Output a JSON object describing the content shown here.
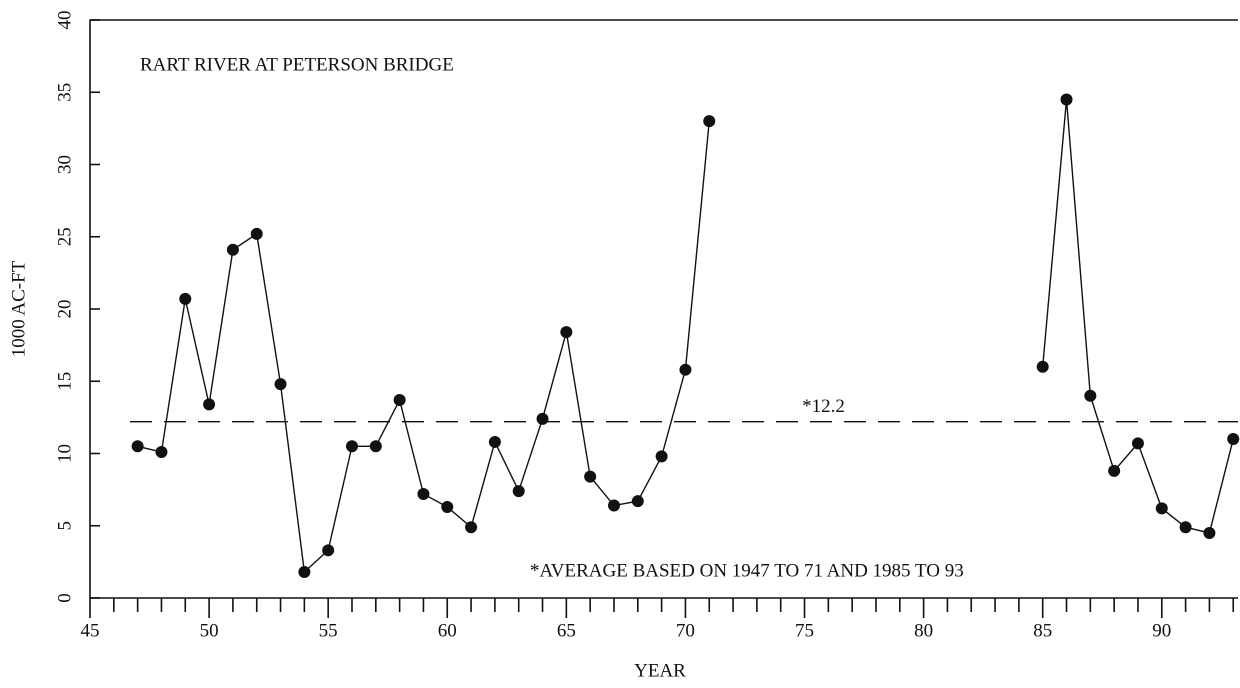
{
  "chart_data": {
    "type": "line",
    "title": "RART RIVER AT PETERSON BRIDGE",
    "x_label": "YEAR",
    "y_label": "1000 AC-FT",
    "annotation": "*AVERAGE BASED ON 1947 TO 71 AND 1985 TO 93",
    "average": {
      "value": 12.2,
      "label": "*12.2"
    },
    "x": [
      47,
      48,
      49,
      50,
      51,
      52,
      53,
      54,
      55,
      56,
      57,
      58,
      59,
      60,
      61,
      62,
      63,
      64,
      65,
      66,
      67,
      68,
      69,
      70,
      71,
      72,
      73,
      74,
      75,
      76,
      77,
      78,
      79,
      80,
      81,
      82,
      83,
      84,
      85,
      86,
      87,
      88,
      89,
      90,
      91,
      92,
      93
    ],
    "series": [
      {
        "color": "#111111",
        "values": [
          10.5,
          10.1,
          20.7,
          13.4,
          24.1,
          25.2,
          14.8,
          1.8,
          3.3,
          10.5,
          10.5,
          13.7,
          7.2,
          6.3,
          4.9,
          10.8,
          7.4,
          12.4,
          18.4,
          8.4,
          6.4,
          6.7,
          9.8,
          15.8,
          33.0,
          null,
          null,
          null,
          null,
          null,
          null,
          null,
          null,
          null,
          null,
          null,
          null,
          null,
          16.0,
          34.5,
          14.0,
          8.8,
          10.7,
          6.2,
          4.9,
          4.5,
          11.0
        ]
      }
    ],
    "xlim": [
      45,
      93.2
    ],
    "ylim": [
      0,
      40
    ],
    "xticks": [
      45,
      50,
      55,
      60,
      65,
      70,
      75,
      80,
      85,
      90
    ],
    "minor_xticks": [
      46,
      47,
      48,
      49,
      51,
      52,
      53,
      54,
      56,
      57,
      58,
      59,
      61,
      62,
      63,
      64,
      66,
      67,
      68,
      69,
      71,
      72,
      73,
      74,
      76,
      77,
      78,
      79,
      81,
      82,
      83,
      84,
      86,
      87,
      88,
      89,
      91,
      92,
      93
    ],
    "yticks": [
      0,
      5,
      10,
      15,
      20,
      25,
      30,
      35,
      40
    ]
  }
}
